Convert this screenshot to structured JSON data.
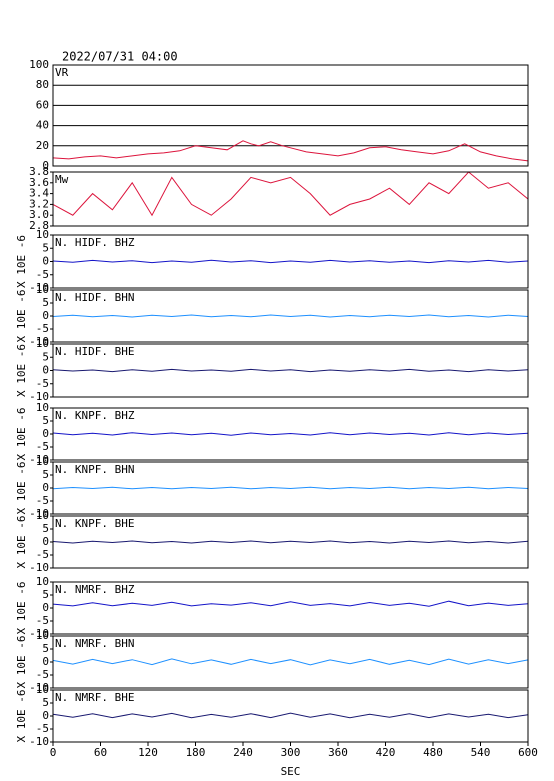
{
  "chart_data": [
    {
      "type": "line",
      "title": "2022/07/31 04:00",
      "label": "VR",
      "grid": true,
      "xlim": [
        0,
        600
      ],
      "ylim": [
        0,
        100
      ],
      "yticks": [
        0,
        20,
        40,
        60,
        80,
        100
      ],
      "series": [
        {
          "color": "#dc143c",
          "x": [
            0,
            20,
            40,
            60,
            80,
            100,
            120,
            140,
            160,
            180,
            200,
            220,
            240,
            250,
            260,
            275,
            290,
            300,
            320,
            340,
            360,
            380,
            400,
            420,
            440,
            460,
            480,
            500,
            520,
            540,
            560,
            580,
            600
          ],
          "values": [
            8,
            7,
            9,
            10,
            8,
            10,
            12,
            13,
            15,
            20,
            18,
            16,
            25,
            22,
            20,
            24,
            20,
            18,
            14,
            12,
            10,
            13,
            18,
            19,
            16,
            14,
            12,
            15,
            22,
            14,
            10,
            7,
            5
          ]
        }
      ]
    },
    {
      "type": "line",
      "label": "Mw",
      "grid": false,
      "xlim": [
        0,
        600
      ],
      "ylim": [
        2.8,
        3.8
      ],
      "yticks": [
        2.8,
        {
          "value": 3,
          "label": "3.0"
        },
        3.2,
        3.4,
        3.6,
        3.8
      ],
      "series": [
        {
          "color": "#dc143c",
          "x": [
            0,
            25,
            50,
            75,
            100,
            125,
            150,
            175,
            200,
            225,
            250,
            275,
            300,
            325,
            350,
            375,
            400,
            425,
            450,
            475,
            500,
            525,
            550,
            575,
            600
          ],
          "values": [
            3.2,
            3.0,
            3.4,
            3.1,
            3.6,
            3.0,
            3.7,
            3.2,
            3.0,
            3.3,
            3.7,
            3.6,
            3.7,
            3.4,
            3.0,
            3.2,
            3.3,
            3.5,
            3.2,
            3.6,
            3.4,
            3.8,
            3.5,
            3.6,
            3.3
          ]
        }
      ]
    },
    {
      "type": "line",
      "label": "N. HIDF. BHZ",
      "ylabel": "X 10E -6",
      "xlim": [
        0,
        600
      ],
      "ylim": [
        -10,
        10
      ],
      "yticks": [
        -10,
        -5,
        0,
        5,
        10
      ],
      "series": [
        {
          "color": "#1414c8",
          "x": [
            0,
            25,
            50,
            75,
            100,
            125,
            150,
            175,
            200,
            225,
            250,
            275,
            300,
            325,
            350,
            375,
            400,
            425,
            450,
            475,
            500,
            525,
            550,
            575,
            600
          ],
          "values": [
            0.2,
            -0.3,
            0.4,
            -0.2,
            0.3,
            -0.4,
            0.2,
            -0.3,
            0.5,
            -0.2,
            0.3,
            -0.4,
            0.2,
            -0.3,
            0.4,
            -0.2,
            0.3,
            -0.3,
            0.2,
            -0.4,
            0.3,
            -0.2,
            0.4,
            -0.3,
            0.2
          ]
        }
      ]
    },
    {
      "type": "line",
      "label": "N. HIDF. BHN",
      "ylabel": "X 10E -6",
      "xlim": [
        0,
        600
      ],
      "ylim": [
        -10,
        10
      ],
      "yticks": [
        -10,
        -5,
        0,
        5,
        10
      ],
      "series": [
        {
          "color": "#1e90ff",
          "x": [
            0,
            25,
            50,
            75,
            100,
            125,
            150,
            175,
            200,
            225,
            250,
            275,
            300,
            325,
            350,
            375,
            400,
            425,
            450,
            475,
            500,
            525,
            550,
            575,
            600
          ],
          "values": [
            -0.2,
            0.3,
            -0.3,
            0.2,
            -0.4,
            0.3,
            -0.2,
            0.4,
            -0.3,
            0.2,
            -0.3,
            0.4,
            -0.2,
            0.3,
            -0.4,
            0.2,
            -0.3,
            0.3,
            -0.2,
            0.4,
            -0.3,
            0.2,
            -0.4,
            0.3,
            -0.2
          ]
        }
      ]
    },
    {
      "type": "line",
      "label": "N. HIDF. BHE",
      "ylabel": "X 10E -6",
      "xlim": [
        0,
        600
      ],
      "ylim": [
        -10,
        10
      ],
      "yticks": [
        -10,
        -5,
        0,
        5,
        10
      ],
      "series": [
        {
          "color": "#191970",
          "x": [
            0,
            25,
            50,
            75,
            100,
            125,
            150,
            175,
            200,
            225,
            250,
            275,
            300,
            325,
            350,
            375,
            400,
            425,
            450,
            475,
            500,
            525,
            550,
            575,
            600
          ],
          "values": [
            0.3,
            -0.2,
            0.2,
            -0.4,
            0.3,
            -0.3,
            0.4,
            -0.2,
            0.2,
            -0.3,
            0.4,
            -0.2,
            0.3,
            -0.4,
            0.2,
            -0.3,
            0.3,
            -0.2,
            0.4,
            -0.3,
            0.2,
            -0.4,
            0.3,
            -0.2,
            0.3
          ]
        }
      ]
    },
    {
      "type": "line",
      "label": "N. KNPF. BHZ",
      "ylabel": "X 10E -6",
      "xlim": [
        0,
        600
      ],
      "ylim": [
        -10,
        10
      ],
      "yticks": [
        -10,
        -5,
        0,
        5,
        10
      ],
      "series": [
        {
          "color": "#1414c8",
          "x": [
            0,
            25,
            50,
            75,
            100,
            125,
            150,
            175,
            200,
            225,
            250,
            275,
            300,
            325,
            350,
            375,
            400,
            425,
            450,
            475,
            500,
            525,
            550,
            575,
            600
          ],
          "values": [
            0.4,
            -0.3,
            0.3,
            -0.4,
            0.5,
            -0.2,
            0.4,
            -0.3,
            0.3,
            -0.5,
            0.4,
            -0.3,
            0.2,
            -0.4,
            0.5,
            -0.3,
            0.4,
            -0.2,
            0.3,
            -0.4,
            0.5,
            -0.3,
            0.4,
            -0.2,
            0.3
          ]
        }
      ]
    },
    {
      "type": "line",
      "label": "N. KNPF. BHN",
      "ylabel": "X 10E -6",
      "xlim": [
        0,
        600
      ],
      "ylim": [
        -10,
        10
      ],
      "yticks": [
        -10,
        -5,
        0,
        5,
        10
      ],
      "series": [
        {
          "color": "#1e90ff",
          "x": [
            0,
            25,
            50,
            75,
            100,
            125,
            150,
            175,
            200,
            225,
            250,
            275,
            300,
            325,
            350,
            375,
            400,
            425,
            450,
            475,
            500,
            525,
            550,
            575,
            600
          ],
          "values": [
            -0.3,
            0.2,
            -0.2,
            0.3,
            -0.3,
            0.2,
            -0.3,
            0.2,
            -0.2,
            0.3,
            -0.3,
            0.2,
            -0.2,
            0.3,
            -0.3,
            0.2,
            -0.2,
            0.3,
            -0.3,
            0.2,
            -0.2,
            0.3,
            -0.3,
            0.2,
            -0.2
          ]
        }
      ]
    },
    {
      "type": "line",
      "label": "N. KNPF. BHE",
      "ylabel": "X 10E -6",
      "xlim": [
        0,
        600
      ],
      "ylim": [
        -10,
        10
      ],
      "yticks": [
        -10,
        -5,
        0,
        5,
        10
      ],
      "series": [
        {
          "color": "#191970",
          "x": [
            0,
            25,
            50,
            75,
            100,
            125,
            150,
            175,
            200,
            225,
            250,
            275,
            300,
            325,
            350,
            375,
            400,
            425,
            450,
            475,
            500,
            525,
            550,
            575,
            600
          ],
          "values": [
            0.2,
            -0.4,
            0.3,
            -0.2,
            0.4,
            -0.3,
            0.2,
            -0.4,
            0.3,
            -0.2,
            0.4,
            -0.3,
            0.3,
            -0.2,
            0.4,
            -0.3,
            0.2,
            -0.4,
            0.3,
            -0.2,
            0.4,
            -0.3,
            0.2,
            -0.4,
            0.3
          ]
        }
      ]
    },
    {
      "type": "line",
      "label": "N. NMRF. BHZ",
      "ylabel": "X 10E -6",
      "xlim": [
        0,
        600
      ],
      "ylim": [
        -10,
        10
      ],
      "yticks": [
        -10,
        -5,
        0,
        5,
        10
      ],
      "series": [
        {
          "color": "#1414c8",
          "x": [
            0,
            25,
            50,
            75,
            100,
            125,
            150,
            175,
            200,
            225,
            250,
            275,
            300,
            325,
            350,
            375,
            400,
            425,
            450,
            475,
            500,
            525,
            550,
            575,
            600
          ],
          "values": [
            1.5,
            0.8,
            2.0,
            0.9,
            1.8,
            1.0,
            2.2,
            0.8,
            1.6,
            1.1,
            2.0,
            0.9,
            2.4,
            1.0,
            1.7,
            0.8,
            2.1,
            1.0,
            1.8,
            0.7,
            2.6,
            0.9,
            1.9,
            1.0,
            1.6
          ]
        }
      ]
    },
    {
      "type": "line",
      "label": "N. NMRF. BHN",
      "ylabel": "X 10E -6",
      "xlim": [
        0,
        600
      ],
      "ylim": [
        -10,
        10
      ],
      "yticks": [
        -10,
        -5,
        0,
        5,
        10
      ],
      "series": [
        {
          "color": "#1e90ff",
          "x": [
            0,
            25,
            50,
            75,
            100,
            125,
            150,
            175,
            200,
            225,
            250,
            275,
            300,
            325,
            350,
            375,
            400,
            425,
            450,
            475,
            500,
            525,
            550,
            575,
            600
          ],
          "values": [
            0.6,
            -0.8,
            1.0,
            -0.6,
            0.9,
            -1.0,
            1.2,
            -0.7,
            0.8,
            -0.9,
            1.0,
            -0.6,
            0.9,
            -1.1,
            0.8,
            -0.7,
            1.0,
            -0.9,
            0.7,
            -1.0,
            1.1,
            -0.8,
            0.9,
            -0.6,
            0.8
          ]
        }
      ]
    },
    {
      "type": "line",
      "label": "N. NMRF. BHE",
      "ylabel": "X 10E -6",
      "xlim": [
        0,
        600
      ],
      "ylim": [
        -10,
        10
      ],
      "yticks": [
        -10,
        -5,
        0,
        5,
        10
      ],
      "xticks": [
        0,
        60,
        120,
        180,
        240,
        300,
        360,
        420,
        480,
        540,
        600
      ],
      "xlabel": "SEC",
      "series": [
        {
          "color": "#191970",
          "x": [
            0,
            25,
            50,
            75,
            100,
            125,
            150,
            175,
            200,
            225,
            250,
            275,
            300,
            325,
            350,
            375,
            400,
            425,
            450,
            475,
            500,
            525,
            550,
            575,
            600
          ],
          "values": [
            0.7,
            -0.5,
            0.9,
            -0.6,
            0.8,
            -0.4,
            1.0,
            -0.7,
            0.6,
            -0.5,
            0.9,
            -0.6,
            1.1,
            -0.5,
            0.8,
            -0.7,
            0.7,
            -0.5,
            0.9,
            -0.6,
            0.8,
            -0.4,
            0.7,
            -0.6,
            0.5
          ]
        }
      ]
    }
  ]
}
